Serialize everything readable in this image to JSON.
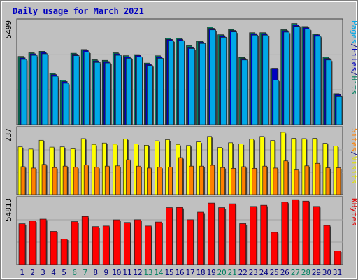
{
  "chart_data": {
    "type": "bar",
    "title": "Daily usage for March 2021",
    "categories": [
      "1",
      "2",
      "3",
      "4",
      "5",
      "6",
      "7",
      "8",
      "9",
      "10",
      "11",
      "12",
      "13",
      "14",
      "15",
      "16",
      "17",
      "18",
      "19",
      "20",
      "21",
      "22",
      "23",
      "24",
      "25",
      "26",
      "27",
      "28",
      "29",
      "30",
      "31"
    ],
    "weekend_days": [
      6,
      7,
      13,
      14,
      20,
      21,
      27,
      28
    ],
    "panels": [
      {
        "name": "top",
        "ymax_label": "5499",
        "ymax": 5499,
        "legend": [
          {
            "text": "Pages",
            "color": "#00a8e8"
          },
          {
            "text": "/",
            "color": "#000080"
          },
          {
            "text": "Files",
            "color": "#0000c0"
          },
          {
            "text": "/",
            "color": "#000080"
          },
          {
            "text": "Hits",
            "color": "#008060"
          }
        ],
        "series": [
          {
            "name": "Hits",
            "color": "#008060",
            "values": [
              3640,
              3834,
              3912,
              2729,
              2374,
              3810,
              4007,
              3461,
              3432,
              3834,
              3678,
              3737,
              3285,
              3674,
              4610,
              4610,
              4210,
              4450,
              5210,
              4800,
              5080,
              3580,
              4910,
              4910,
              2995,
              5070,
              5400,
              5240,
              4850,
              3600,
              1650
            ]
          },
          {
            "name": "Files",
            "color": "#0000c0",
            "values": [
              3560,
              3780,
              3860,
              2670,
              2300,
              3760,
              3960,
              3400,
              3370,
              3780,
              3620,
              3690,
              3220,
              3620,
              4550,
              4560,
              4140,
              4410,
              5140,
              4750,
              5030,
              3530,
              4860,
              4860,
              3010,
              5020,
              5330,
              5180,
              4800,
              3530,
              1600
            ]
          },
          {
            "name": "Pages",
            "color": "#00a8e8",
            "values": [
              3480,
              3700,
              3780,
              2580,
              2210,
              3680,
              3870,
              3320,
              3290,
              3700,
              3540,
              3610,
              3150,
              3540,
              4480,
              4480,
              4060,
              4330,
              5060,
              4660,
              4950,
              3450,
              4780,
              4780,
              2370,
              4940,
              5250,
              5100,
              4720,
              3450,
              1520
            ]
          }
        ]
      },
      {
        "name": "middle",
        "ymax_label": "237",
        "ymax": 237,
        "legend": [
          {
            "text": "Sites",
            "color": "#ff8000"
          },
          {
            "text": "/",
            "color": "#000080"
          },
          {
            "text": "Visits",
            "color": "#e0e000"
          }
        ],
        "series": [
          {
            "name": "Visits",
            "color": "#ffff00",
            "values": [
              174,
              166,
              198,
              173,
              174,
              167,
              204,
              183,
              188,
              184,
              203,
              185,
              180,
              196,
              200,
              183,
              179,
              192,
              212,
              172,
              189,
              185,
              202,
              212,
              197,
              227,
              205,
              204,
              205,
              187,
              177
            ]
          },
          {
            "name": "Sites",
            "color": "#ff8000",
            "values": [
              102,
              97,
              110,
              99,
              104,
              100,
              108,
              100,
              104,
              105,
              127,
              104,
              97,
              100,
              101,
              135,
              104,
              104,
              107,
              99,
              96,
              102,
              96,
              104,
              97,
              123,
              90,
              105,
              114,
              98,
              98
            ]
          }
        ]
      },
      {
        "name": "bottom",
        "ymax_label": "54813",
        "ymax": 54813,
        "legend": [
          {
            "text": "KBytes",
            "color": "#e00000"
          }
        ],
        "series": [
          {
            "name": "KBytes",
            "color": "#ff0000",
            "values": [
              34400,
              36700,
              38300,
              28000,
              21500,
              36200,
              40500,
              32000,
              32500,
              37700,
              35500,
              37800,
              32500,
              35900,
              48000,
              48200,
              37800,
              44200,
              51800,
              48000,
              51200,
              34500,
              49000,
              50000,
              27200,
              52600,
              54700,
              53500,
              49000,
              33000,
              11500
            ]
          }
        ]
      }
    ],
    "colors": {
      "background": "#c0c0c0",
      "panel": "#c0c0c0",
      "title": "#0000c0",
      "day_label": "#000080",
      "weekend_label": "#008060"
    }
  }
}
